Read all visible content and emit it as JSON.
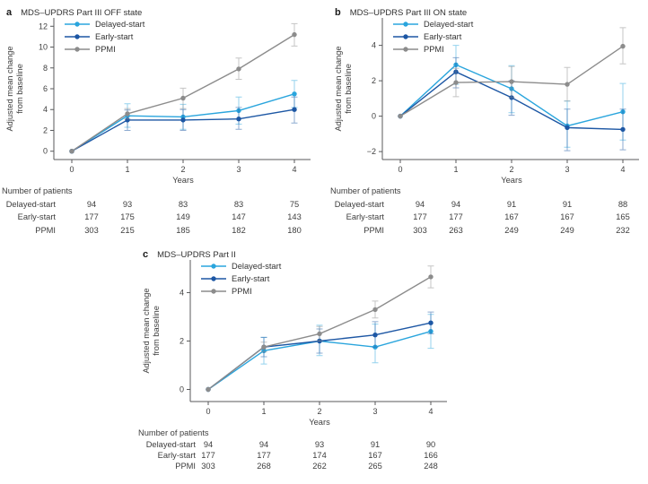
{
  "colors": {
    "delayed_start": "#2aa5dd",
    "early_start": "#1d57a4",
    "ppmi": "#8c8c8c",
    "axis": "#58595b",
    "text": "#3d3d3d"
  },
  "chart_data": [
    {
      "type": "line",
      "panel_label": "a",
      "title": "MDS–UPDRS Part III OFF state",
      "xlabel": "Years",
      "ylabel_lines": [
        "Adjusted mean change",
        "from baseline"
      ],
      "x": [
        0,
        1,
        2,
        3,
        4
      ],
      "xtick_labels": [
        "0",
        "1",
        "2",
        "3",
        "4"
      ],
      "yticks": [
        0,
        2,
        4,
        6,
        8,
        10,
        12
      ],
      "ytick_labels": [
        "0",
        "2",
        "4",
        "6",
        "8",
        "10",
        "12"
      ],
      "ylim": [
        -0.8,
        12.8
      ],
      "grid": false,
      "legend_position": "upper-left",
      "series": [
        {
          "name": "Delayed-start",
          "color": "#2aa5dd",
          "values": [
            0,
            3.4,
            3.3,
            3.9,
            5.5
          ],
          "err_lo": [
            null,
            2.3,
            2.1,
            2.6,
            4.2
          ],
          "err_hi": [
            null,
            4.55,
            4.5,
            5.2,
            6.8
          ]
        },
        {
          "name": "Early-start",
          "color": "#1d57a4",
          "values": [
            0,
            3.0,
            3.0,
            3.1,
            4.0
          ],
          "err_lo": [
            null,
            2.0,
            2.0,
            2.1,
            2.7
          ],
          "err_hi": [
            null,
            3.95,
            4.0,
            4.2,
            5.2
          ]
        },
        {
          "name": "PPMI",
          "color": "#8c8c8c",
          "values": [
            0,
            3.6,
            5.1,
            7.9,
            11.2
          ],
          "err_lo": [
            null,
            3.1,
            4.1,
            6.9,
            10.1
          ],
          "err_hi": [
            null,
            4.1,
            6.05,
            8.95,
            12.25
          ]
        }
      ],
      "patients_table": {
        "title": "Number of patients",
        "rows": [
          {
            "label": "Delayed-start",
            "values": [
              "94",
              "93",
              "83",
              "83",
              "75"
            ]
          },
          {
            "label": "Early-start",
            "values": [
              "177",
              "175",
              "149",
              "147",
              "143"
            ]
          },
          {
            "label": "PPMI",
            "values": [
              "303",
              "215",
              "185",
              "182",
              "180"
            ]
          }
        ]
      }
    },
    {
      "type": "line",
      "panel_label": "b",
      "title": "MDS–UPDRS Part III ON state",
      "xlabel": "Years",
      "ylabel_lines": [
        "Adjusted mean change",
        "from baseline"
      ],
      "x": [
        0,
        1,
        2,
        3,
        4
      ],
      "xtick_labels": [
        "0",
        "1",
        "2",
        "3",
        "4"
      ],
      "yticks": [
        -2,
        0,
        2,
        4
      ],
      "ytick_labels": [
        "−2",
        "0",
        "2",
        "4"
      ],
      "ylim": [
        -2.45,
        5.55
      ],
      "grid": false,
      "legend_position": "upper-left",
      "series": [
        {
          "name": "Delayed-start",
          "color": "#2aa5dd",
          "values": [
            0,
            2.9,
            1.55,
            -0.55,
            0.25
          ],
          "err_lo": [
            null,
            1.8,
            0.2,
            -1.75,
            -1.35
          ],
          "err_hi": [
            null,
            4.0,
            2.85,
            0.85,
            1.85
          ]
        },
        {
          "name": "Early-start",
          "color": "#1d57a4",
          "values": [
            0,
            2.5,
            1.05,
            -0.65,
            -0.75
          ],
          "err_lo": [
            null,
            1.6,
            0.05,
            -1.95,
            -1.9
          ],
          "err_hi": [
            null,
            3.3,
            2.0,
            0.4,
            0.4
          ]
        },
        {
          "name": "PPMI",
          "color": "#8c8c8c",
          "values": [
            0,
            1.9,
            1.95,
            1.8,
            3.95
          ],
          "err_lo": [
            null,
            1.1,
            1.05,
            0.85,
            2.95
          ],
          "err_hi": [
            null,
            2.7,
            2.8,
            2.75,
            5.0
          ]
        }
      ],
      "patients_table": {
        "title": "Number of patients",
        "rows": [
          {
            "label": "Delayed-start",
            "values": [
              "94",
              "94",
              "91",
              "91",
              "88"
            ]
          },
          {
            "label": "Early-start",
            "values": [
              "177",
              "177",
              "167",
              "167",
              "165"
            ]
          },
          {
            "label": "PPMI",
            "values": [
              "303",
              "263",
              "249",
              "249",
              "232"
            ]
          }
        ]
      }
    },
    {
      "type": "line",
      "panel_label": "c",
      "title": "MDS–UPDRS Part II",
      "xlabel": "Years",
      "ylabel_lines": [
        "Adjusted mean change",
        "from baseline"
      ],
      "x": [
        0,
        1,
        2,
        3,
        4
      ],
      "xtick_labels": [
        "0",
        "1",
        "2",
        "3",
        "4"
      ],
      "yticks": [
        0,
        2,
        4
      ],
      "ytick_labels": [
        "0",
        "2",
        "4"
      ],
      "ylim": [
        -0.5,
        5.35
      ],
      "grid": false,
      "legend_position": "upper-left",
      "series": [
        {
          "name": "Delayed-start",
          "color": "#2aa5dd",
          "values": [
            0,
            1.6,
            2.0,
            1.75,
            2.4
          ],
          "err_lo": [
            null,
            1.05,
            1.4,
            1.1,
            1.7
          ],
          "err_hi": [
            null,
            2.15,
            2.65,
            2.7,
            3.1
          ]
        },
        {
          "name": "Early-start",
          "color": "#1d57a4",
          "values": [
            0,
            1.75,
            2.0,
            2.25,
            2.75
          ],
          "err_lo": [
            null,
            1.35,
            1.5,
            1.75,
            2.3
          ],
          "err_hi": [
            null,
            2.15,
            2.5,
            2.8,
            3.2
          ]
        },
        {
          "name": "PPMI",
          "color": "#8c8c8c",
          "values": [
            0,
            1.75,
            2.3,
            3.3,
            4.65
          ],
          "err_lo": [
            null,
            1.55,
            2.0,
            2.95,
            4.2
          ],
          "err_hi": [
            null,
            1.95,
            2.6,
            3.65,
            5.1
          ]
        }
      ],
      "patients_table": {
        "title": "Number of patients",
        "rows": [
          {
            "label": "Delayed-start",
            "values": [
              "94",
              "94",
              "93",
              "91",
              "90"
            ]
          },
          {
            "label": "Early-start",
            "values": [
              "177",
              "177",
              "174",
              "167",
              "166"
            ]
          },
          {
            "label": "PPMI",
            "values": [
              "303",
              "268",
              "262",
              "265",
              "248"
            ]
          }
        ]
      }
    }
  ]
}
